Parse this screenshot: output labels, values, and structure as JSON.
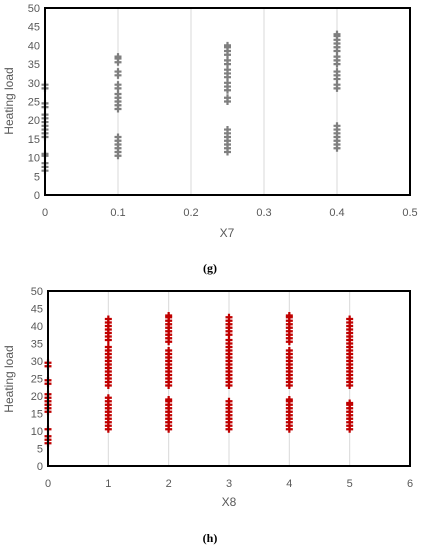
{
  "chart_data": [
    {
      "type": "scatter",
      "caption": "(g)",
      "xlabel": "X7",
      "ylabel": "Heating load",
      "xlim": [
        0,
        0.5
      ],
      "ylim": [
        0,
        50
      ],
      "xticks": [
        "0",
        "0.1",
        "0.2",
        "0.3",
        "0.4",
        "0.5"
      ],
      "yticks": [
        "0",
        "5",
        "10",
        "15",
        "20",
        "25",
        "30",
        "35",
        "40",
        "45",
        "50"
      ],
      "grid": "vertical",
      "marker": "plus",
      "color": "#7f7f7f",
      "series": [
        {
          "x": 0,
          "y": [
            6.5,
            7.5,
            8.5,
            10.5,
            11.0,
            15.5,
            16.5,
            17.5,
            18.5,
            19.5,
            20.5,
            21.5,
            23.5,
            24.5,
            28.5,
            29.5
          ]
        },
        {
          "x": 0.1,
          "y": [
            10.5,
            11.5,
            12.5,
            13.5,
            14.5,
            15.5,
            23.0,
            24.0,
            25.0,
            26.0,
            27.0,
            28.5,
            29.5,
            32.0,
            33.0,
            35.5,
            36.5,
            37.0
          ]
        },
        {
          "x": 0.25,
          "y": [
            11.5,
            12.5,
            13.5,
            14.5,
            15.5,
            16.5,
            17.5,
            25.0,
            26.0,
            28.0,
            29.0,
            30.0,
            31.5,
            32.5,
            33.5,
            35.0,
            36.0,
            37.5,
            38.5,
            39.5,
            40.0
          ]
        },
        {
          "x": 0.4,
          "y": [
            12.5,
            13.5,
            14.5,
            15.5,
            16.5,
            17.5,
            18.5,
            28.5,
            29.5,
            31.0,
            32.0,
            33.0,
            35.0,
            36.0,
            37.0,
            38.5,
            39.5,
            40.5,
            41.5,
            42.5,
            43.0
          ]
        }
      ]
    },
    {
      "type": "scatter",
      "caption": "(h)",
      "xlabel": "X8",
      "ylabel": "Heating load",
      "xlim": [
        0,
        6
      ],
      "ylim": [
        0,
        50
      ],
      "xticks": [
        "0",
        "1",
        "2",
        "3",
        "4",
        "5",
        "6"
      ],
      "yticks": [
        "0",
        "5",
        "10",
        "15",
        "20",
        "25",
        "30",
        "35",
        "40",
        "45",
        "50"
      ],
      "grid": "vertical",
      "marker": "plus",
      "color": "#c00000",
      "series": [
        {
          "x": 0,
          "y": [
            6.5,
            7.5,
            8.5,
            10.5,
            15.5,
            16.5,
            17.5,
            18.5,
            19.5,
            20.5,
            23.5,
            24.5,
            28.5,
            29.5
          ]
        },
        {
          "x": 1,
          "y": [
            10.5,
            11.5,
            12.5,
            13.5,
            14.5,
            15.5,
            16.5,
            17.5,
            18.5,
            19.5,
            23.0,
            24.0,
            25.0,
            26.0,
            27.0,
            28.0,
            29.0,
            30.0,
            31.0,
            32.0,
            33.0,
            34.0,
            36.0,
            37.0,
            38.0,
            39.0,
            40.0,
            41.0,
            42.0
          ]
        },
        {
          "x": 2,
          "y": [
            10.5,
            11.5,
            12.5,
            13.5,
            14.5,
            15.5,
            16.5,
            17.5,
            18.5,
            19.0,
            23.0,
            24.0,
            25.0,
            26.0,
            27.0,
            28.0,
            29.0,
            30.0,
            31.0,
            32.0,
            33.0,
            35.5,
            36.5,
            37.5,
            38.5,
            39.5,
            40.5,
            41.5,
            42.5,
            43.0
          ]
        },
        {
          "x": 3,
          "y": [
            10.5,
            11.5,
            12.5,
            13.5,
            14.5,
            15.5,
            16.5,
            17.5,
            18.5,
            23.0,
            24.0,
            25.0,
            26.0,
            27.0,
            28.0,
            29.0,
            30.0,
            31.0,
            32.0,
            33.0,
            34.0,
            35.0,
            36.0,
            37.5,
            38.5,
            39.5,
            40.5,
            41.5,
            42.5
          ]
        },
        {
          "x": 4,
          "y": [
            10.5,
            11.5,
            12.5,
            13.5,
            14.5,
            15.5,
            16.5,
            17.5,
            18.5,
            19.0,
            23.0,
            24.0,
            25.0,
            26.0,
            27.0,
            28.0,
            29.0,
            30.0,
            31.0,
            32.0,
            33.0,
            35.5,
            36.5,
            37.5,
            38.5,
            39.5,
            40.5,
            41.5,
            42.5,
            43.0
          ]
        },
        {
          "x": 5,
          "y": [
            10.5,
            11.5,
            12.5,
            13.5,
            14.5,
            15.5,
            16.5,
            17.5,
            18.0,
            23.0,
            24.0,
            25.0,
            26.0,
            27.0,
            28.0,
            29.0,
            30.0,
            31.0,
            32.0,
            33.0,
            34.0,
            35.0,
            36.0,
            37.0,
            38.0,
            39.0,
            40.0,
            41.0,
            42.0
          ]
        }
      ]
    }
  ]
}
